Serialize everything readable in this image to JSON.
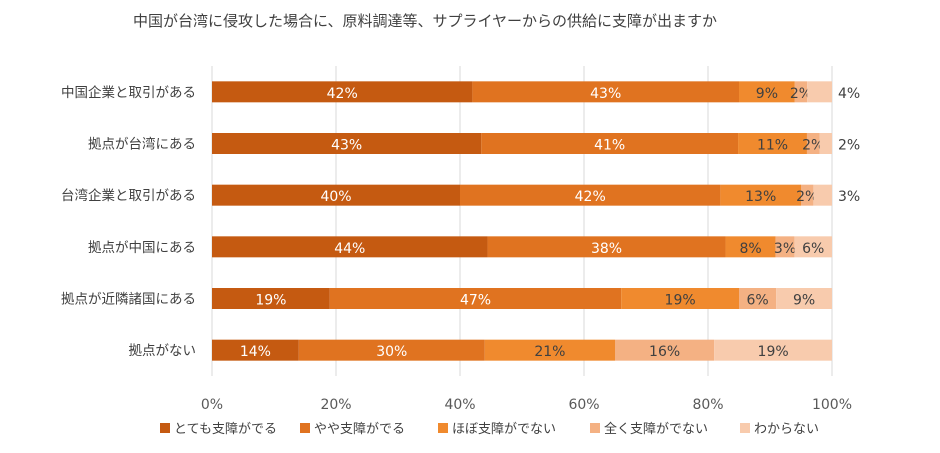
{
  "chart_data": {
    "type": "bar",
    "orientation": "horizontal",
    "stacked": "percent",
    "title": "中国が台湾に侵攻した場合に、原料調達等、サプライヤーからの供給に支障が出ますか",
    "categories": [
      "中国企業と取引がある",
      "拠点が台湾にある",
      "台湾企業と取引がある",
      "拠点が中国にある",
      "拠点が近隣諸国にある",
      "拠点がない"
    ],
    "series": [
      {
        "name": "とても支障がでる",
        "color": "#c55a11",
        "values": [
          42,
          43,
          40,
          44,
          19,
          14
        ]
      },
      {
        "name": "やや支障がでる",
        "color": "#e07320",
        "values": [
          43,
          41,
          42,
          38,
          47,
          30
        ]
      },
      {
        "name": "ほぼ支障がでない",
        "color": "#f08a2e",
        "values": [
          9,
          11,
          13,
          8,
          19,
          21
        ]
      },
      {
        "name": "全く支障がでない",
        "color": "#f4b183",
        "values": [
          2,
          2,
          2,
          3,
          6,
          16
        ]
      },
      {
        "name": "わからない",
        "color": "#f8cbad",
        "values": [
          4,
          2,
          3,
          6,
          9,
          19
        ]
      }
    ],
    "value_labels": [
      [
        "42%",
        "43%",
        "9%",
        "2%",
        "4%"
      ],
      [
        "43%",
        "41%",
        "11%",
        "2%",
        "2%"
      ],
      [
        "40%",
        "42%",
        "13%",
        "2%",
        "3%"
      ],
      [
        "44%",
        "38%",
        "8%",
        "3%",
        "6%"
      ],
      [
        "19%",
        "47%",
        "19%",
        "6%",
        "9%"
      ],
      [
        "14%",
        "30%",
        "21%",
        "16%",
        "19%"
      ]
    ],
    "x_ticks": [
      "0%",
      "20%",
      "40%",
      "60%",
      "80%",
      "100%"
    ],
    "xlim": [
      0,
      100
    ],
    "grid": true,
    "legend_position": "bottom"
  }
}
